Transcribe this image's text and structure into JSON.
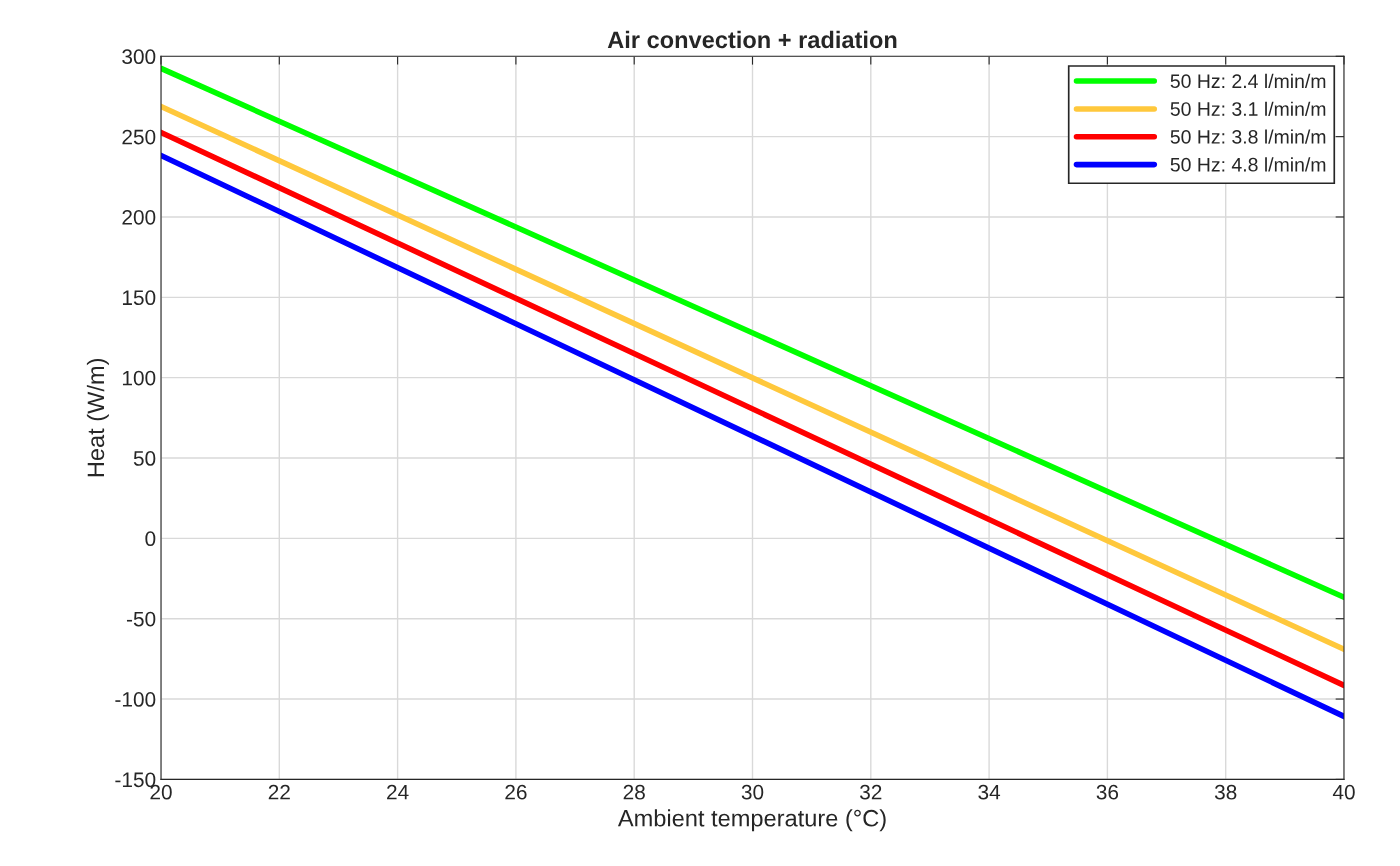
{
  "chart_data": {
    "type": "line",
    "title": "Air convection + radiation",
    "xlabel": "Ambient temperature (°C)",
    "ylabel": "Heat (W/m)",
    "x": [
      20,
      40
    ],
    "series": [
      {
        "name": "50 Hz: 2.4 l/min/m",
        "color": "#00ff00",
        "values": [
          292.5,
          -36.7
        ]
      },
      {
        "name": "50 Hz: 3.1 l/min/m",
        "color": "#ffc83c",
        "values": [
          268.8,
          -69
        ]
      },
      {
        "name": "50 Hz: 3.8 l/min/m",
        "color": "#ff0000",
        "values": [
          252.6,
          -91.5
        ]
      },
      {
        "name": "50 Hz: 4.8 l/min/m",
        "color": "#0000ff",
        "values": [
          238.3,
          -110.8
        ]
      }
    ],
    "xlim": [
      20,
      40
    ],
    "xticks": [
      20,
      22,
      24,
      26,
      28,
      30,
      32,
      34,
      36,
      38,
      40
    ],
    "ylim": [
      -150,
      300
    ],
    "yticks": [
      -150,
      -100,
      -50,
      0,
      50,
      100,
      150,
      200,
      250,
      300
    ],
    "grid": true,
    "legend": "top right",
    "marker": "none",
    "line_style": "solid"
  }
}
